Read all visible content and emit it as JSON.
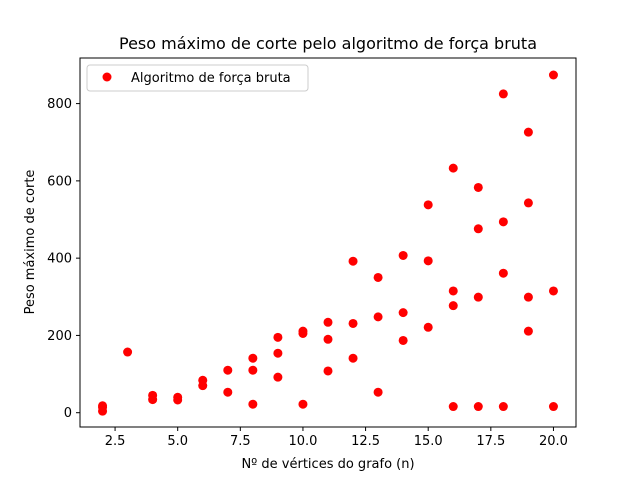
{
  "chart_data": {
    "type": "scatter",
    "title": "Peso máximo de corte pelo algoritmo de força bruta",
    "xlabel": "Nº de vértices do grafo (n)",
    "ylabel": "Peso máximo de corte",
    "xlim": [
      1.1,
      20.9
    ],
    "ylim": [
      -37,
      918
    ],
    "xticks": [
      2.5,
      5.0,
      7.5,
      10.0,
      12.5,
      15.0,
      17.5,
      20.0
    ],
    "xtick_labels": [
      "2.5",
      "5.0",
      "7.5",
      "10.0",
      "12.5",
      "15.0",
      "17.5",
      "20.0"
    ],
    "yticks": [
      0,
      200,
      400,
      600,
      800
    ],
    "ytick_labels": [
      "0",
      "200",
      "400",
      "600",
      "800"
    ],
    "grid": false,
    "legend_position": "top-left",
    "series": [
      {
        "name": "Algoritmo de força bruta",
        "color": "#ff0000",
        "marker": "circle",
        "points": [
          [
            2,
            18
          ],
          [
            2,
            14
          ],
          [
            2,
            4
          ],
          [
            3,
            157
          ],
          [
            4,
            45
          ],
          [
            4,
            34
          ],
          [
            5,
            40
          ],
          [
            5,
            33
          ],
          [
            6,
            84
          ],
          [
            6,
            70
          ],
          [
            7,
            110
          ],
          [
            7,
            53
          ],
          [
            8,
            141
          ],
          [
            8,
            110
          ],
          [
            8,
            22
          ],
          [
            9,
            195
          ],
          [
            9,
            154
          ],
          [
            9,
            92
          ],
          [
            10,
            211
          ],
          [
            10,
            205
          ],
          [
            10,
            22
          ],
          [
            11,
            234
          ],
          [
            11,
            190
          ],
          [
            11,
            108
          ],
          [
            12,
            392
          ],
          [
            12,
            231
          ],
          [
            12,
            141
          ],
          [
            13,
            350
          ],
          [
            13,
            248
          ],
          [
            13,
            53
          ],
          [
            14,
            407
          ],
          [
            14,
            259
          ],
          [
            14,
            187
          ],
          [
            15,
            538
          ],
          [
            15,
            393
          ],
          [
            15,
            221
          ],
          [
            16,
            633
          ],
          [
            16,
            315
          ],
          [
            16,
            277
          ],
          [
            16,
            16
          ],
          [
            17,
            583
          ],
          [
            17,
            476
          ],
          [
            17,
            299
          ],
          [
            17,
            16
          ],
          [
            18,
            825
          ],
          [
            18,
            494
          ],
          [
            18,
            361
          ],
          [
            18,
            16
          ],
          [
            19,
            726
          ],
          [
            19,
            543
          ],
          [
            19,
            299
          ],
          [
            19,
            211
          ],
          [
            20,
            874
          ],
          [
            20,
            315
          ],
          [
            20,
            16
          ]
        ]
      }
    ]
  }
}
